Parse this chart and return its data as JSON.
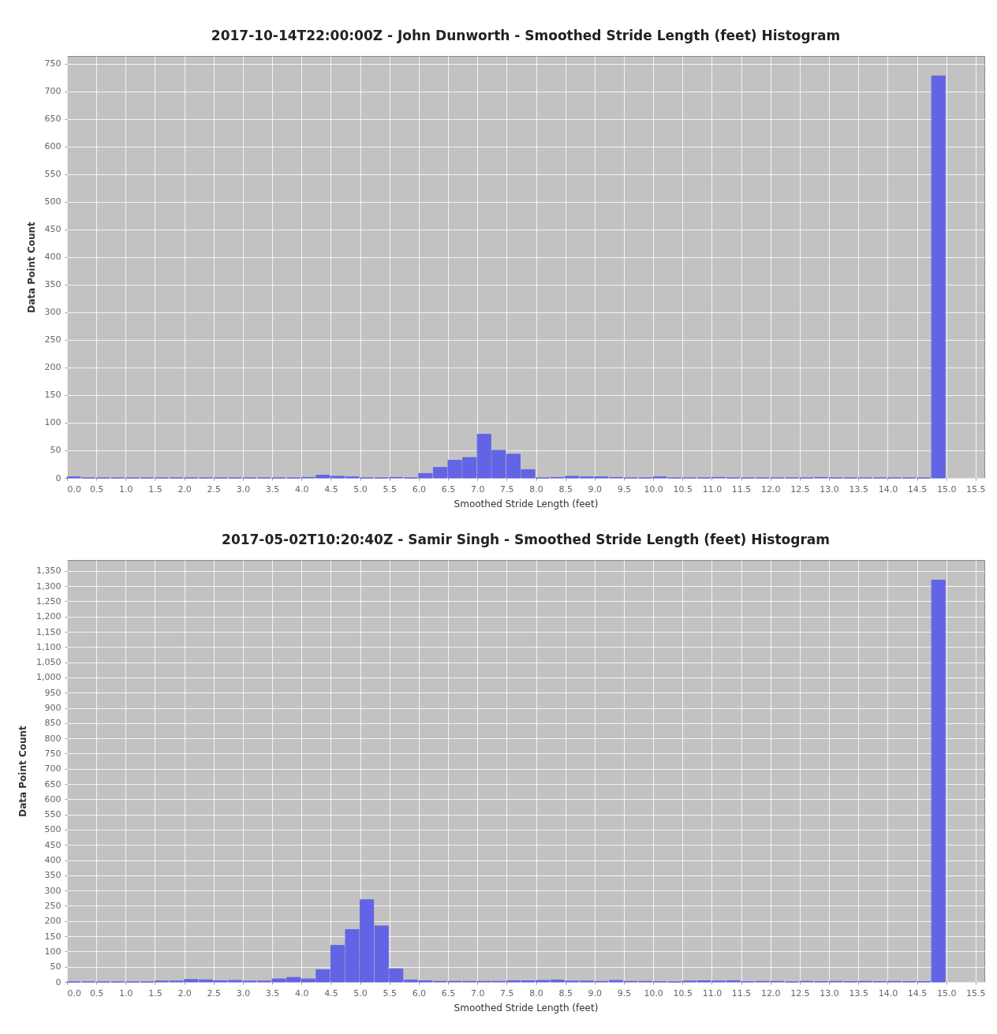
{
  "chart_data": [
    {
      "type": "histogram",
      "title": "2017-10-14T22:00:00Z - John Dunworth - Smoothed Stride Length (feet) Histogram",
      "xlabel": "Smoothed Stride Length (feet)",
      "ylabel": "Data Point Count",
      "color": "#6363e6",
      "grid": true,
      "bins": [
        0,
        0.25,
        0.5,
        0.75,
        1,
        1.25,
        1.5,
        1.75,
        2,
        2.25,
        2.5,
        2.75,
        3,
        3.25,
        3.5,
        3.75,
        4,
        4.25,
        4.5,
        4.75,
        5,
        5.25,
        5.5,
        5.75,
        6,
        6.25,
        6.5,
        6.75,
        7,
        7.25,
        7.5,
        7.75,
        8,
        8.25,
        8.5,
        8.75,
        9,
        9.25,
        9.5,
        9.75,
        10,
        10.25,
        10.5,
        10.75,
        11,
        11.25,
        11.5,
        11.75,
        12,
        12.25,
        12.5,
        12.75,
        13,
        13.25,
        13.5,
        13.75,
        14,
        14.25,
        14.5,
        14.75,
        15
      ],
      "values": [
        2,
        0,
        0,
        0,
        0,
        0,
        0,
        0,
        0,
        0,
        0,
        0,
        0,
        0,
        0,
        0,
        1,
        5,
        3,
        2,
        0,
        0,
        1,
        0,
        8,
        19,
        32,
        37,
        79,
        50,
        43,
        15,
        0,
        1,
        3,
        2,
        2,
        1,
        0,
        0,
        2,
        0,
        0,
        0,
        1,
        0,
        0,
        0,
        0,
        0,
        0,
        1,
        0,
        0,
        0,
        0,
        0,
        0,
        0,
        728
      ],
      "xlim": [
        0,
        15.65
      ],
      "ylim": [
        0,
        764
      ],
      "xticks": [
        {
          "value": 0,
          "label": "0.0"
        },
        0.5,
        {
          "value": 1,
          "label": "1.0"
        },
        1.5,
        {
          "value": 2,
          "label": "2.0"
        },
        2.5,
        {
          "value": 3,
          "label": "3.0"
        },
        3.5,
        {
          "value": 4,
          "label": "4.0"
        },
        4.5,
        {
          "value": 5,
          "label": "5.0"
        },
        5.5,
        {
          "value": 6,
          "label": "6.0"
        },
        6.5,
        {
          "value": 7,
          "label": "7.0"
        },
        7.5,
        {
          "value": 8,
          "label": "8.0"
        },
        8.5,
        {
          "value": 9,
          "label": "9.0"
        },
        9.5,
        {
          "value": 10,
          "label": "10.0"
        },
        10.5,
        {
          "value": 11,
          "label": "11.0"
        },
        11.5,
        {
          "value": 12,
          "label": "12.0"
        },
        12.5,
        {
          "value": 13,
          "label": "13.0"
        },
        13.5,
        {
          "value": 14,
          "label": "14.0"
        },
        14.5,
        {
          "value": 15,
          "label": "15.0"
        },
        15.5
      ],
      "yticks": [
        0,
        50,
        100,
        150,
        200,
        250,
        300,
        350,
        400,
        450,
        500,
        550,
        600,
        650,
        700,
        750
      ]
    },
    {
      "type": "histogram",
      "title": "2017-05-02T10:20:40Z - Samir Singh - Smoothed Stride Length (feet) Histogram",
      "xlabel": "Smoothed Stride Length (feet)",
      "ylabel": "Data Point Count",
      "color": "#6363e6",
      "grid": true,
      "bins": [
        0,
        0.25,
        0.5,
        0.75,
        1,
        1.25,
        1.5,
        1.75,
        2,
        2.25,
        2.5,
        2.75,
        3,
        3.25,
        3.5,
        3.75,
        4,
        4.25,
        4.5,
        4.75,
        5,
        5.25,
        5.5,
        5.75,
        6,
        6.25,
        6.5,
        6.75,
        7,
        7.25,
        7.5,
        7.75,
        8,
        8.25,
        8.5,
        8.75,
        9,
        9.25,
        9.5,
        9.75,
        10,
        10.25,
        10.5,
        10.75,
        11,
        11.25,
        11.5,
        11.75,
        12,
        12.25,
        12.5,
        12.75,
        13,
        13.25,
        13.5,
        13.75,
        14,
        14.25,
        14.5,
        14.75,
        15
      ],
      "values": [
        0,
        0,
        0,
        0,
        0,
        0,
        3,
        3,
        8,
        7,
        4,
        5,
        3,
        3,
        10,
        15,
        10,
        40,
        120,
        172,
        270,
        184,
        43,
        6,
        4,
        2,
        2,
        2,
        2,
        2,
        4,
        4,
        5,
        6,
        3,
        3,
        2,
        5,
        2,
        2,
        1,
        0,
        3,
        4,
        3,
        4,
        1,
        2,
        2,
        0,
        2,
        1,
        2,
        1,
        2,
        1,
        2,
        1,
        1,
        1320
      ],
      "xlim": [
        0,
        15.65
      ],
      "ylim": [
        0,
        1386
      ],
      "xticks": [
        {
          "value": 0,
          "label": "0.0"
        },
        0.5,
        {
          "value": 1,
          "label": "1.0"
        },
        1.5,
        {
          "value": 2,
          "label": "2.0"
        },
        2.5,
        {
          "value": 3,
          "label": "3.0"
        },
        3.5,
        {
          "value": 4,
          "label": "4.0"
        },
        4.5,
        {
          "value": 5,
          "label": "5.0"
        },
        5.5,
        {
          "value": 6,
          "label": "6.0"
        },
        6.5,
        {
          "value": 7,
          "label": "7.0"
        },
        7.5,
        {
          "value": 8,
          "label": "8.0"
        },
        8.5,
        {
          "value": 9,
          "label": "9.0"
        },
        9.5,
        {
          "value": 10,
          "label": "10.0"
        },
        10.5,
        {
          "value": 11,
          "label": "11.0"
        },
        11.5,
        {
          "value": 12,
          "label": "12.0"
        },
        12.5,
        {
          "value": 13,
          "label": "13.0"
        },
        13.5,
        {
          "value": 14,
          "label": "14.0"
        },
        14.5,
        {
          "value": 15,
          "label": "15.0"
        },
        15.5
      ],
      "yticks": [
        0,
        50,
        100,
        150,
        200,
        250,
        300,
        350,
        400,
        450,
        500,
        550,
        600,
        650,
        700,
        750,
        800,
        850,
        900,
        950,
        {
          "value": 1000,
          "label": "1,000"
        },
        {
          "value": 1050,
          "label": "1,050"
        },
        {
          "value": 1100,
          "label": "1,100"
        },
        {
          "value": 1150,
          "label": "1,150"
        },
        {
          "value": 1200,
          "label": "1,200"
        },
        {
          "value": 1250,
          "label": "1,250"
        },
        {
          "value": 1300,
          "label": "1,300"
        },
        {
          "value": 1350,
          "label": "1,350"
        }
      ]
    }
  ]
}
